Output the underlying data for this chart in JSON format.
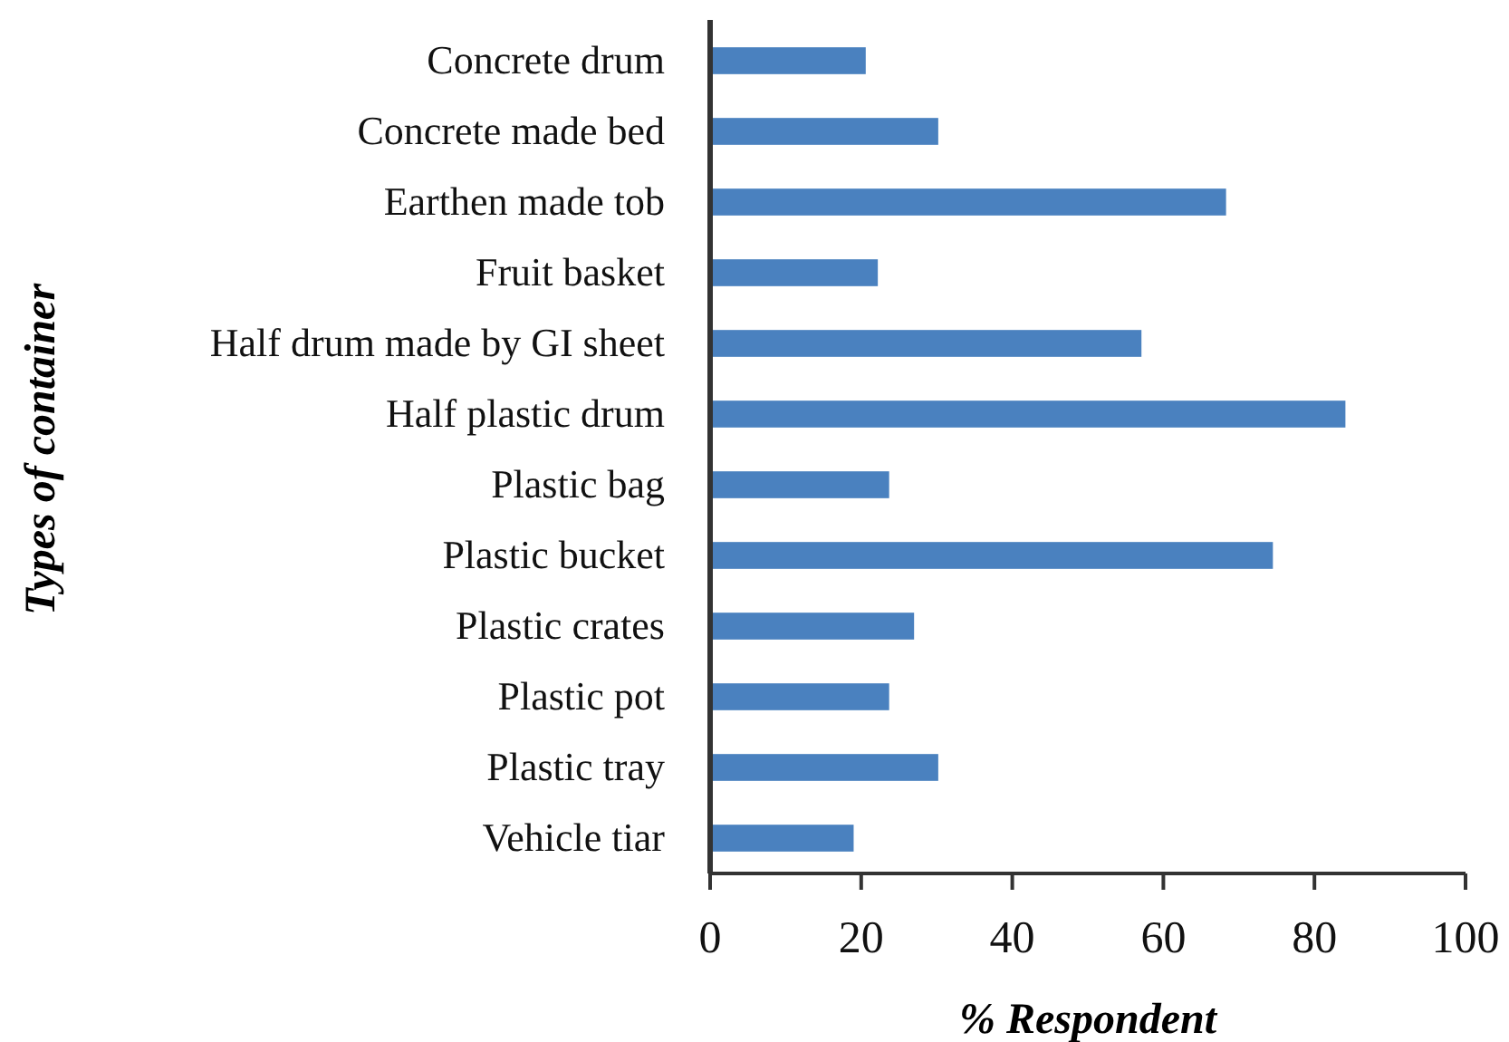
{
  "chart_data": {
    "type": "bar",
    "orientation": "horizontal",
    "xlabel": "% Respondent",
    "ylabel": "Types of container",
    "categories": [
      "Concrete drum",
      "Concrete made bed",
      "Earthen made tob",
      "Fruit basket",
      "Half drum made by GI sheet",
      "Half plastic drum",
      "Plastic bag",
      "Plastic bucket",
      "Plastic crates",
      "Plastic pot",
      "Plastic tray",
      "Vehicle tiar"
    ],
    "values": [
      20.6,
      30.2,
      68.3,
      22.2,
      57.1,
      84.1,
      23.7,
      74.5,
      27.0,
      23.7,
      30.2,
      19.0
    ],
    "color": "#4a81bf",
    "xlim": [
      0,
      100
    ],
    "xticks": [
      0,
      20,
      40,
      60,
      80,
      100
    ],
    "grid": false
  }
}
